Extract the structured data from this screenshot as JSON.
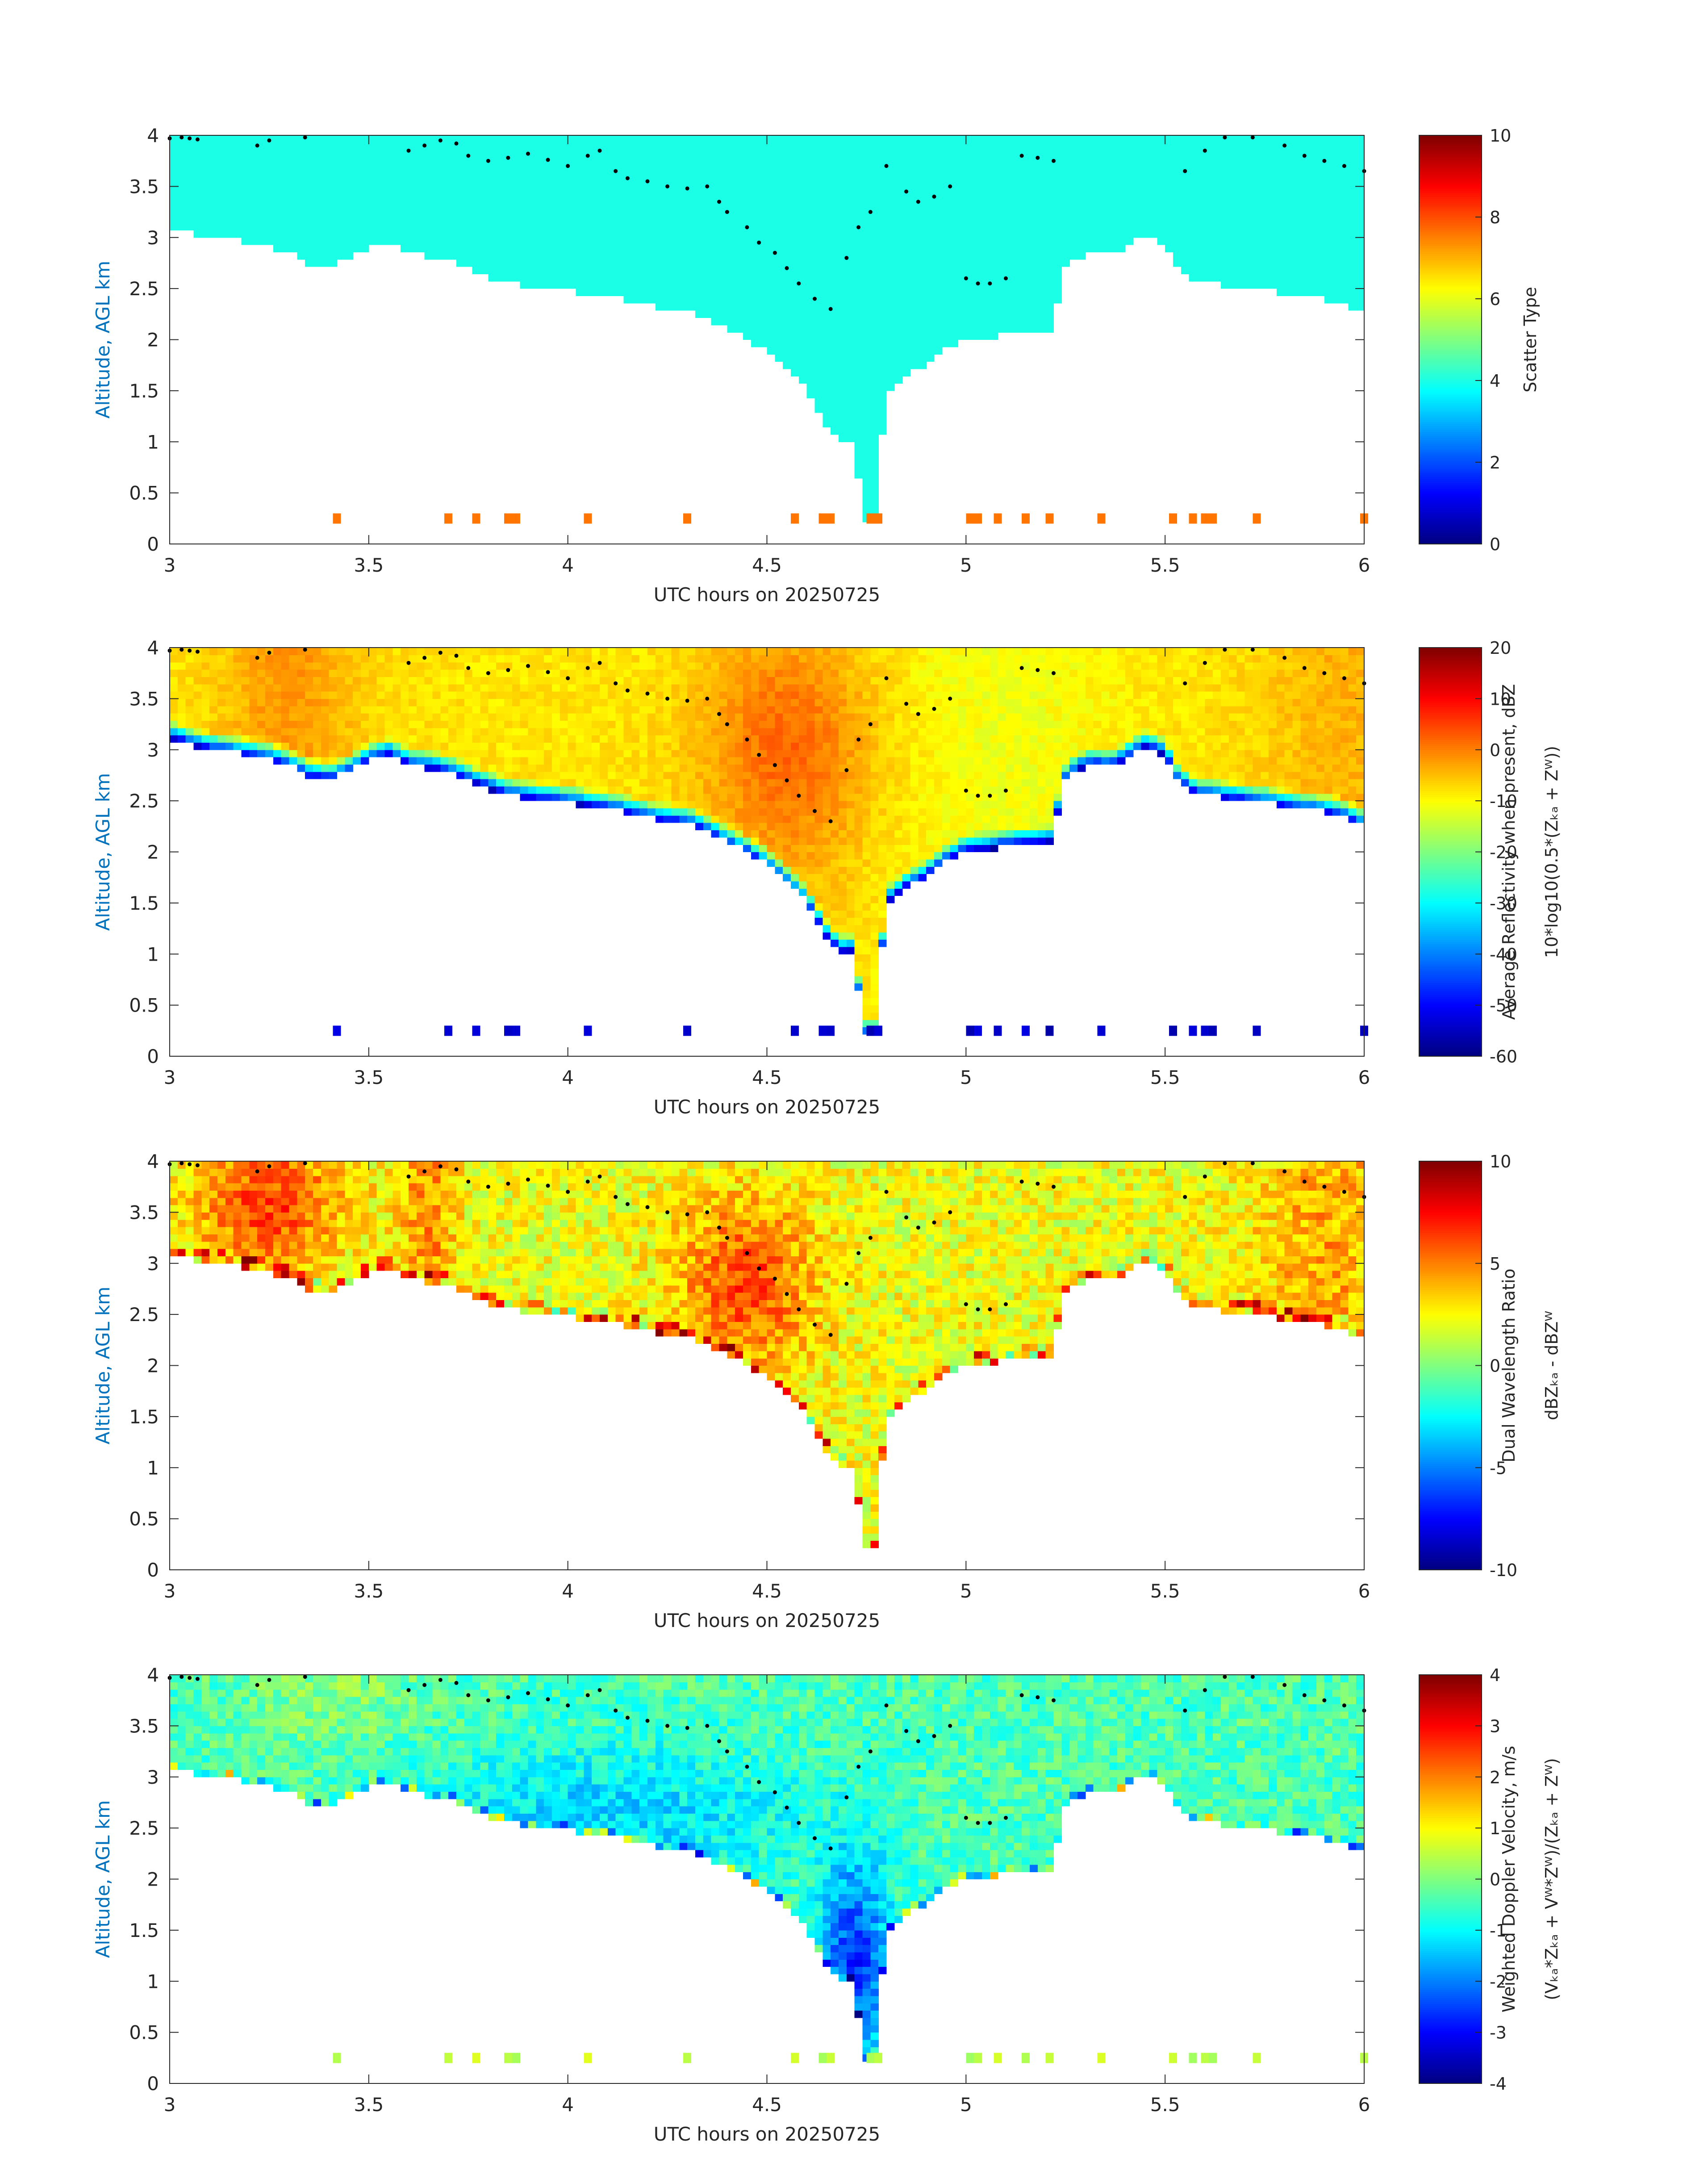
{
  "figure": {
    "background": "#ffffff"
  },
  "chart_data": [
    {
      "type": "heatmap",
      "variable": "scatter_type",
      "xlabel": "UTC hours on 20250725",
      "ylabel": "Altitude, AGL km",
      "xlim": [
        3,
        6
      ],
      "ylim": [
        0,
        4
      ],
      "xticks": [
        "3",
        "3.5",
        "4",
        "4.5",
        "5",
        "5.5",
        "6"
      ],
      "yticks": [
        "0",
        "0.5",
        "1",
        "1.5",
        "2",
        "2.5",
        "3",
        "3.5",
        "4"
      ],
      "colorbar": {
        "label_lines": [
          "Scatter Type"
        ],
        "clim": [
          0,
          10
        ],
        "ticks": [
          "0",
          "2",
          "4",
          "6",
          "8",
          "10"
        ],
        "colormap": "jet"
      },
      "ylabel_color": "#0072bd"
    },
    {
      "type": "heatmap",
      "variable": "reflectivity",
      "xlabel": "UTC hours on 20250725",
      "ylabel": "Altitude, AGL km",
      "xlim": [
        3,
        6
      ],
      "ylim": [
        0,
        4
      ],
      "xticks": [
        "3",
        "3.5",
        "4",
        "4.5",
        "5",
        "5.5",
        "6"
      ],
      "yticks": [
        "0",
        "0.5",
        "1",
        "1.5",
        "2",
        "2.5",
        "3",
        "3.5",
        "4"
      ],
      "colorbar": {
        "label_lines": [
          "Average Reflectivity when present, dBZ",
          "10*log10(0.5*(Zₖₐ + Zᵂ))"
        ],
        "clim": [
          -60,
          20
        ],
        "ticks": [
          "-60",
          "-50",
          "-40",
          "-30",
          "-20",
          "-10",
          "0",
          "10",
          "20"
        ],
        "colormap": "jet"
      },
      "ylabel_color": "#0072bd"
    },
    {
      "type": "heatmap",
      "variable": "dual_wavelength_ratio",
      "xlabel": "UTC hours on 20250725",
      "ylabel": "Altitude, AGL km",
      "xlim": [
        3,
        6
      ],
      "ylim": [
        0,
        4
      ],
      "xticks": [
        "3",
        "3.5",
        "4",
        "4.5",
        "5",
        "5.5",
        "6"
      ],
      "yticks": [
        "0",
        "0.5",
        "1",
        "1.5",
        "2",
        "2.5",
        "3",
        "3.5",
        "4"
      ],
      "colorbar": {
        "label_lines": [
          "Dual Wavelength Ratio",
          "dBZₖₐ - dBZᵂ"
        ],
        "clim": [
          -10,
          10
        ],
        "ticks": [
          "-10",
          "-5",
          "0",
          "5",
          "10"
        ],
        "colormap": "jet"
      },
      "ylabel_color": "#0072bd"
    },
    {
      "type": "heatmap",
      "variable": "doppler_velocity",
      "xlabel": "UTC hours on 20250725",
      "ylabel": "Altitude, AGL km",
      "xlim": [
        3,
        6
      ],
      "ylim": [
        0,
        4
      ],
      "xticks": [
        "3",
        "3.5",
        "4",
        "4.5",
        "5",
        "5.5",
        "6"
      ],
      "yticks": [
        "0",
        "0.5",
        "1",
        "1.5",
        "2",
        "2.5",
        "3",
        "3.5",
        "4"
      ],
      "colorbar": {
        "label_lines": [
          "Weighted Doppler Velocity, m/s",
          "(Vₖₐ*Zₖₐ + Vᵂ*Zᵂ)/(Zₖₐ + Zᵂ)"
        ],
        "clim": [
          -4,
          4
        ],
        "ticks": [
          "-4",
          "-3",
          "-2",
          "-1",
          "0",
          "1",
          "2",
          "3",
          "4"
        ],
        "colormap": "jet"
      },
      "ylabel_color": "#0072bd"
    }
  ],
  "cloud_base_km": [
    [
      3.0,
      3.12
    ],
    [
      3.05,
      3.05
    ],
    [
      3.1,
      3.0
    ],
    [
      3.15,
      2.98
    ],
    [
      3.2,
      2.95
    ],
    [
      3.25,
      2.92
    ],
    [
      3.3,
      2.85
    ],
    [
      3.35,
      2.75
    ],
    [
      3.4,
      2.72
    ],
    [
      3.45,
      2.78
    ],
    [
      3.5,
      2.9
    ],
    [
      3.55,
      2.95
    ],
    [
      3.6,
      2.85
    ],
    [
      3.65,
      2.82
    ],
    [
      3.7,
      2.78
    ],
    [
      3.75,
      2.7
    ],
    [
      3.8,
      2.62
    ],
    [
      3.85,
      2.55
    ],
    [
      3.9,
      2.52
    ],
    [
      3.95,
      2.5
    ],
    [
      4.0,
      2.48
    ],
    [
      4.05,
      2.45
    ],
    [
      4.1,
      2.42
    ],
    [
      4.15,
      2.38
    ],
    [
      4.2,
      2.33
    ],
    [
      4.25,
      2.3
    ],
    [
      4.3,
      2.28
    ],
    [
      4.35,
      2.2
    ],
    [
      4.4,
      2.1
    ],
    [
      4.45,
      2.0
    ],
    [
      4.5,
      1.88
    ],
    [
      4.55,
      1.7
    ],
    [
      4.6,
      1.5
    ],
    [
      4.63,
      1.3
    ],
    [
      4.66,
      1.1
    ],
    [
      4.7,
      1.0
    ],
    [
      4.72,
      1.05
    ],
    [
      4.74,
      0.2
    ],
    [
      4.77,
      0.2
    ],
    [
      4.8,
      1.5
    ],
    [
      4.85,
      1.65
    ],
    [
      4.9,
      1.75
    ],
    [
      4.95,
      1.9
    ],
    [
      5.0,
      2.0
    ],
    [
      5.05,
      2.02
    ],
    [
      5.1,
      2.05
    ],
    [
      5.15,
      2.07
    ],
    [
      5.2,
      2.08
    ],
    [
      5.22,
      2.1
    ],
    [
      5.24,
      2.65
    ],
    [
      5.28,
      2.8
    ],
    [
      5.32,
      2.85
    ],
    [
      5.36,
      2.82
    ],
    [
      5.4,
      2.9
    ],
    [
      5.45,
      3.02
    ],
    [
      5.5,
      2.95
    ],
    [
      5.53,
      2.7
    ],
    [
      5.58,
      2.55
    ],
    [
      5.62,
      2.55
    ],
    [
      5.66,
      2.52
    ],
    [
      5.7,
      2.5
    ],
    [
      5.75,
      2.48
    ],
    [
      5.8,
      2.45
    ],
    [
      5.85,
      2.42
    ],
    [
      5.9,
      2.4
    ],
    [
      5.95,
      2.35
    ],
    [
      6.0,
      2.25
    ]
  ],
  "melting_layer_dots_km": [
    [
      3.0,
      3.97
    ],
    [
      3.03,
      3.98
    ],
    [
      3.05,
      3.97
    ],
    [
      3.07,
      3.96
    ],
    [
      3.22,
      3.9
    ],
    [
      3.25,
      3.95
    ],
    [
      3.34,
      3.98
    ],
    [
      3.6,
      3.85
    ],
    [
      3.64,
      3.9
    ],
    [
      3.68,
      3.95
    ],
    [
      3.72,
      3.92
    ],
    [
      3.75,
      3.8
    ],
    [
      3.8,
      3.75
    ],
    [
      3.85,
      3.78
    ],
    [
      3.9,
      3.82
    ],
    [
      3.95,
      3.76
    ],
    [
      4.0,
      3.7
    ],
    [
      4.05,
      3.8
    ],
    [
      4.08,
      3.85
    ],
    [
      4.12,
      3.65
    ],
    [
      4.15,
      3.58
    ],
    [
      4.2,
      3.55
    ],
    [
      4.25,
      3.5
    ],
    [
      4.3,
      3.48
    ],
    [
      4.35,
      3.5
    ],
    [
      4.38,
      3.35
    ],
    [
      4.4,
      3.25
    ],
    [
      4.45,
      3.1
    ],
    [
      4.48,
      2.95
    ],
    [
      4.52,
      2.85
    ],
    [
      4.55,
      2.7
    ],
    [
      4.58,
      2.55
    ],
    [
      4.62,
      2.4
    ],
    [
      4.66,
      2.3
    ],
    [
      4.7,
      2.8
    ],
    [
      4.73,
      3.1
    ],
    [
      4.76,
      3.25
    ],
    [
      4.8,
      3.7
    ],
    [
      4.85,
      3.45
    ],
    [
      4.88,
      3.35
    ],
    [
      4.92,
      3.4
    ],
    [
      4.96,
      3.5
    ],
    [
      5.0,
      2.6
    ],
    [
      5.03,
      2.55
    ],
    [
      5.06,
      2.55
    ],
    [
      5.1,
      2.6
    ],
    [
      5.14,
      3.8
    ],
    [
      5.18,
      3.78
    ],
    [
      5.22,
      3.75
    ],
    [
      5.55,
      3.65
    ],
    [
      5.6,
      3.85
    ],
    [
      5.65,
      3.98
    ],
    [
      5.72,
      3.98
    ],
    [
      5.8,
      3.9
    ],
    [
      5.85,
      3.8
    ],
    [
      5.9,
      3.75
    ],
    [
      5.95,
      3.7
    ],
    [
      6.0,
      3.65
    ]
  ],
  "near_surface_echo_hours": [
    3.42,
    3.7,
    3.77,
    3.85,
    3.87,
    4.05,
    4.3,
    4.57,
    4.64,
    4.66,
    4.76,
    4.78,
    5.01,
    5.03,
    5.08,
    5.15,
    5.21,
    5.34,
    5.52,
    5.57,
    5.6,
    5.62,
    5.73,
    6.0
  ]
}
